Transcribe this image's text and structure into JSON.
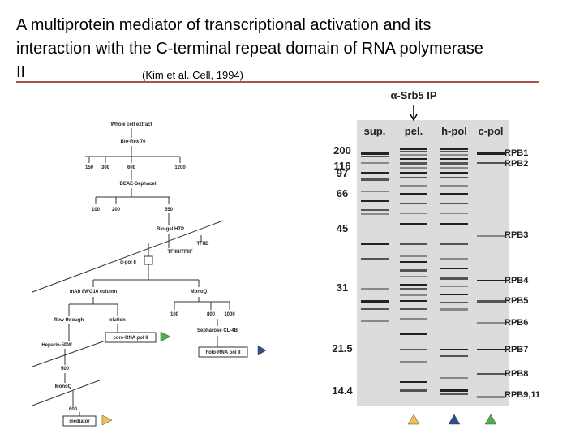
{
  "title": {
    "main": "A multiprotein mediator of transcriptional activation and its interaction with the C-terminal repeat domain of RNA polymerase II",
    "citation": "(Kim et al. Cell, 1994)"
  },
  "scheme": {
    "nodes": [
      "Whole cell extract",
      "Bio-Rex 70",
      "150",
      "300",
      "600",
      "1200",
      "DEAE-Sephacel",
      "100",
      "200",
      "550",
      "Bio-gel HTP",
      "TFIIB",
      "TFIIH/TFIIF",
      "α-pol II",
      "mAb 8WG16 column",
      "MonoQ",
      "flow through",
      "elution",
      "100",
      "800",
      "1000",
      "core-RNA pol II",
      "Heparin-5PW",
      "Sepharose CL-4B",
      "holo-RNA pol II",
      "500",
      "MonoQ",
      "600",
      "mediator"
    ]
  },
  "gel": {
    "ip_label": "α-Srb5 IP",
    "lanes": [
      "sup.",
      "pel.",
      "h-pol",
      "c-pol"
    ],
    "markers": [
      "200",
      "116",
      "97",
      "66",
      "45",
      "31",
      "21.5",
      "14.4"
    ],
    "subunits": [
      "RPB1",
      "RPB2",
      "RPB3",
      "RPB4",
      "RPB5",
      "RPB6",
      "RPB7",
      "RPB8",
      "RPB9,11"
    ]
  }
}
